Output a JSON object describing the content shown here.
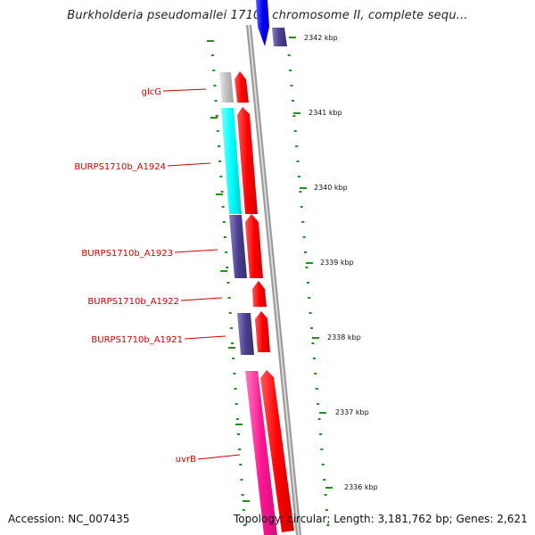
{
  "map": {
    "title": "Burkholderia pseudomallei 1710b chromosome II, complete sequ...",
    "accession": "Accession: NC_007435",
    "topology": "Topology: circular; Length: 3,181,762 bp; Genes: 2,621",
    "scale_ticks": [
      {
        "label": "2342 kbp",
        "kbp": 2342
      },
      {
        "label": "2341 kbp",
        "kbp": 2341
      },
      {
        "label": "2340 kbp",
        "kbp": 2340
      },
      {
        "label": "2339 kbp",
        "kbp": 2339
      },
      {
        "label": "2338 kbp",
        "kbp": 2338
      },
      {
        "label": "2337 kbp",
        "kbp": 2337
      },
      {
        "label": "2336 kbp",
        "kbp": 2336
      }
    ],
    "gene_labels": [
      {
        "label": "glcG"
      },
      {
        "label": "BURPS1710b_A1924"
      },
      {
        "label": "BURPS1710b_A1923"
      },
      {
        "label": "BURPS1710b_A1922"
      },
      {
        "label": "BURPS1710b_A1921"
      },
      {
        "label": "uvrB"
      }
    ],
    "colors": {
      "forward_strand": "#ff0000",
      "glcG": "#c0c0c0",
      "A1924": "#00ffff",
      "A1923": "#4b3f8f",
      "A1921": "#4b3f8f",
      "uvrB": "#ff1493",
      "top_gene": "#0000ff",
      "label_text": "#cc0000",
      "tick_green": "#1f8f1f",
      "backbone": "#999999"
    }
  }
}
